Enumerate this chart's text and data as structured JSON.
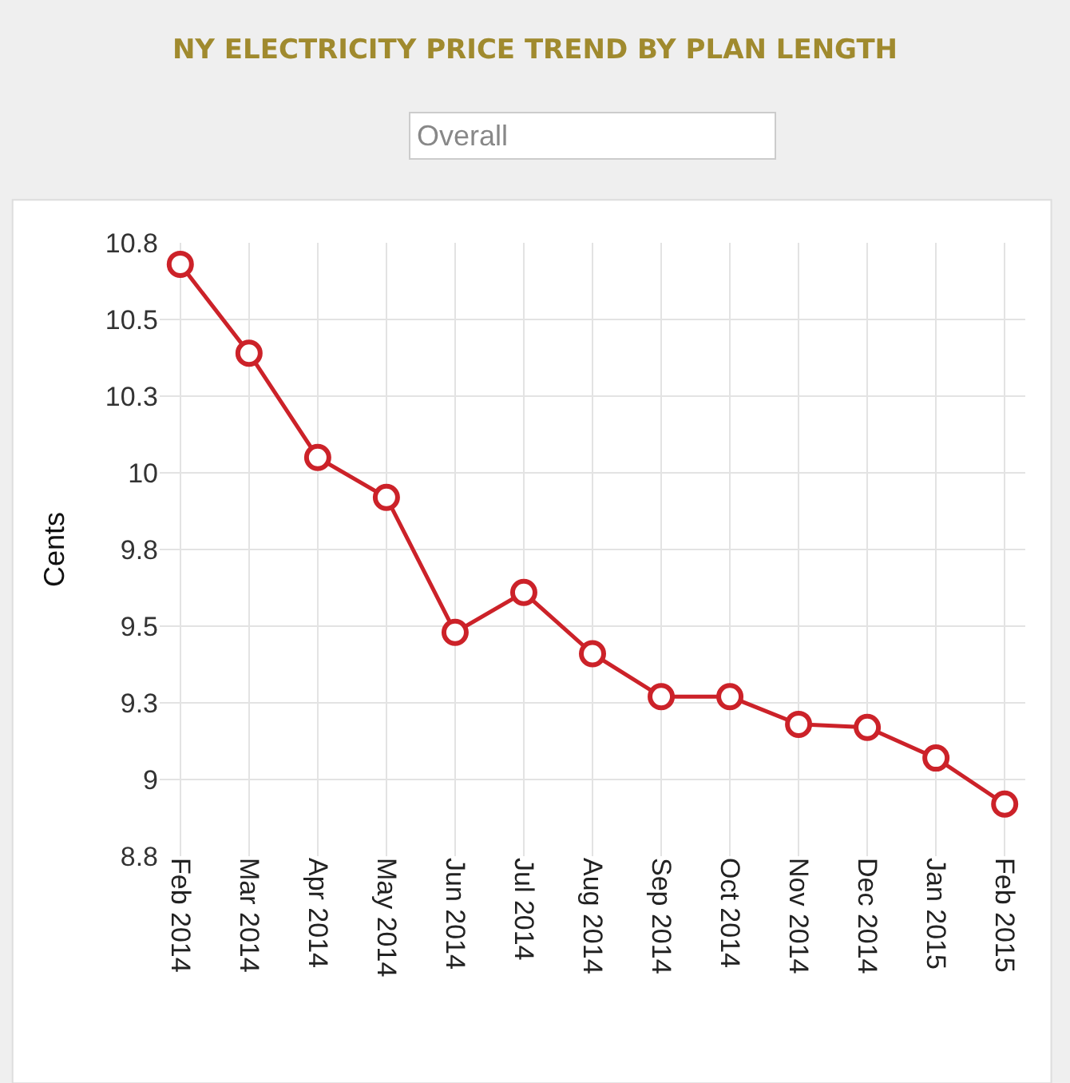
{
  "chart_data": {
    "type": "line",
    "title": "NY ELECTRICITY PRICE TREND BY PLAN LENGTH",
    "subtitle": "Overall",
    "ylabel": "Cents",
    "categories": [
      "Feb 2014",
      "Mar 2014",
      "Apr 2014",
      "May 2014",
      "Jun 2014",
      "Jul 2014",
      "Aug 2014",
      "Sep 2014",
      "Oct 2014",
      "Nov 2014",
      "Dec 2014",
      "Jan 2015",
      "Feb 2015"
    ],
    "series": [
      {
        "color": "#cc2229",
        "values": [
          10.68,
          10.39,
          10.05,
          9.92,
          9.48,
          9.61,
          9.41,
          9.27,
          9.27,
          9.18,
          9.17,
          9.07,
          8.92
        ]
      }
    ],
    "ylim": [
      8.75,
      10.75
    ],
    "yticks": [
      {
        "value": 8.75,
        "label": "8.8"
      },
      9,
      {
        "value": 9.25,
        "label": "9.3"
      },
      {
        "value": 9.5,
        "label": "9.5"
      },
      {
        "value": 9.75,
        "label": "9.8"
      },
      10,
      {
        "value": 10.25,
        "label": "10.3"
      },
      {
        "value": 10.5,
        "label": "10.5"
      },
      {
        "value": 10.75,
        "label": "10.8"
      }
    ],
    "grid": true,
    "marker": "circle",
    "line_style": "solid"
  }
}
